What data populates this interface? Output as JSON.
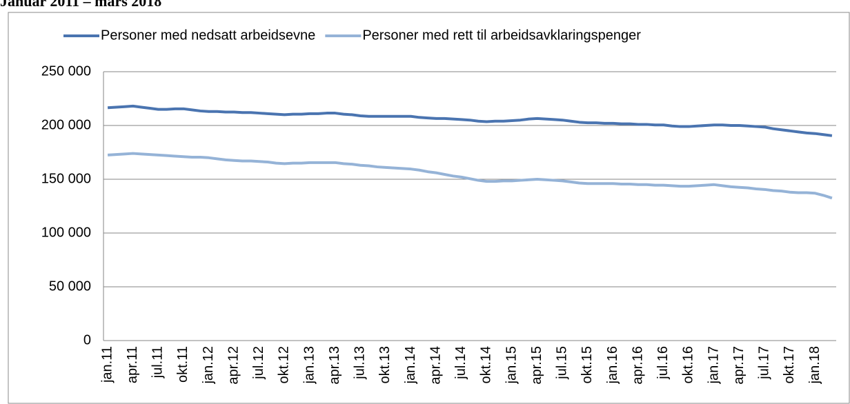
{
  "chart_data": {
    "type": "line",
    "title": "Januar 2011 – mars 2018",
    "categories": [
      "jan.11",
      null,
      null,
      "apr.11",
      null,
      null,
      "jul.11",
      null,
      null,
      "okt.11",
      null,
      null,
      "jan.12",
      null,
      null,
      "apr.12",
      null,
      null,
      "jul.12",
      null,
      null,
      "okt.12",
      null,
      null,
      "jan.13",
      null,
      null,
      "apr.13",
      null,
      null,
      "jul.13",
      null,
      null,
      "okt.13",
      null,
      null,
      "jan.14",
      null,
      null,
      "apr.14",
      null,
      null,
      "jul.14",
      null,
      null,
      "okt.14",
      null,
      null,
      "jan.15",
      null,
      null,
      "apr.15",
      null,
      null,
      "jul.15",
      null,
      null,
      "okt.15",
      null,
      null,
      "jan.16",
      null,
      null,
      "apr.16",
      null,
      null,
      "jul.16",
      null,
      null,
      "okt.16",
      null,
      null,
      "jan.17",
      null,
      null,
      "apr.17",
      null,
      null,
      "jul.17",
      null,
      null,
      "okt.17",
      null,
      null,
      "jan.18",
      null,
      null
    ],
    "series": [
      {
        "name": "Personer med nedsatt arbeidsevne",
        "color": "#4a74b0",
        "values": [
          216500,
          217000,
          217500,
          218000,
          217000,
          216000,
          215000,
          215000,
          215500,
          215500,
          214500,
          213500,
          213000,
          213000,
          212500,
          212500,
          212000,
          212000,
          211500,
          211000,
          210500,
          210000,
          210500,
          210500,
          211000,
          211000,
          211500,
          211500,
          210500,
          210000,
          209000,
          208500,
          208500,
          208500,
          208500,
          208500,
          208500,
          207500,
          207000,
          206500,
          206500,
          206000,
          205500,
          205000,
          204000,
          203500,
          204000,
          204000,
          204500,
          205000,
          206000,
          206500,
          206000,
          205500,
          205000,
          204000,
          203000,
          202500,
          202500,
          202000,
          202000,
          201500,
          201500,
          201000,
          201000,
          200500,
          200500,
          199500,
          199000,
          199000,
          199500,
          200000,
          200500,
          200500,
          200000,
          200000,
          199500,
          199000,
          198500,
          197000,
          196000,
          195000,
          194000,
          193000,
          192500,
          191500,
          190500
        ]
      },
      {
        "name": "Personer med rett til arbeidsavklaringspenger",
        "color": "#95b3d7",
        "values": [
          172500,
          173000,
          173500,
          174000,
          173500,
          173000,
          172500,
          172000,
          171500,
          171000,
          170500,
          170500,
          170000,
          169000,
          168000,
          167500,
          167000,
          167000,
          166500,
          166000,
          165000,
          164500,
          165000,
          165000,
          165500,
          165500,
          165500,
          165500,
          164500,
          164000,
          163000,
          162500,
          161500,
          161000,
          160500,
          160000,
          159500,
          158500,
          157000,
          156000,
          154500,
          153000,
          152000,
          150500,
          149000,
          148000,
          148000,
          148500,
          148500,
          149000,
          149500,
          150000,
          149500,
          149000,
          148500,
          147500,
          146500,
          146000,
          146000,
          146000,
          146000,
          145500,
          145500,
          145000,
          145000,
          144500,
          144500,
          144000,
          143500,
          143500,
          144000,
          144500,
          145000,
          144000,
          143000,
          142500,
          142000,
          141000,
          140500,
          139500,
          139000,
          138000,
          137500,
          137500,
          137000,
          135000,
          132500
        ]
      }
    ],
    "ylim": [
      0,
      250000
    ],
    "yticks": [
      0,
      {
        "value": 50000,
        "label": "50 000"
      },
      {
        "value": 100000,
        "label": "100 000"
      },
      {
        "value": 150000,
        "label": "150 000"
      },
      {
        "value": 200000,
        "label": "200 000"
      },
      {
        "value": 250000,
        "label": "250 000"
      }
    ],
    "grid": true,
    "legend": "top"
  }
}
